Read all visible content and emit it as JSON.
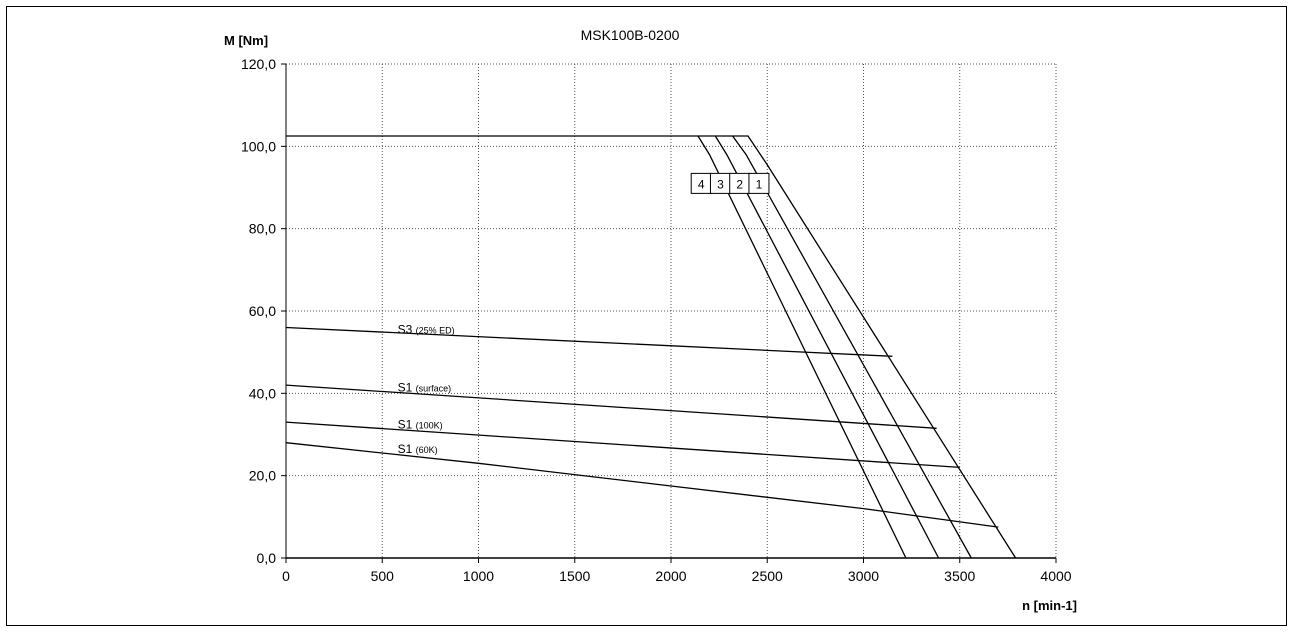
{
  "chart_data": {
    "type": "line",
    "title": "MSK100B-0200",
    "xlabel": "n [min-1]",
    "ylabel": "M [Nm]",
    "xlim": [
      0,
      4000
    ],
    "ylim": [
      0,
      120
    ],
    "xticks": [
      0,
      500,
      1000,
      1500,
      2000,
      2500,
      3000,
      3500,
      4000
    ],
    "xtick_labels": [
      "0",
      "500",
      "1000",
      "1500",
      "2000",
      "2500",
      "3000",
      "3500",
      "4000"
    ],
    "yticks": [
      0,
      20,
      40,
      60,
      80,
      100,
      120
    ],
    "ytick_labels": [
      "0,0",
      "20,0",
      "40,0",
      "60,0",
      "80,0",
      "100,0",
      "120,0"
    ],
    "grid": true,
    "series": [
      {
        "name": "S3 (25% ED)",
        "label_main": "S3",
        "label_sub": "(25% ED)",
        "label_at": [
          580,
          54.5
        ],
        "x": [
          0,
          3150
        ],
        "y": [
          56,
          49
        ]
      },
      {
        "name": "S1 (surface)",
        "label_main": "S1",
        "label_sub": "(surface)",
        "label_at": [
          580,
          40.5
        ],
        "x": [
          0,
          3380
        ],
        "y": [
          42,
          31.5
        ]
      },
      {
        "name": "S1 (100K)",
        "label_main": "S1",
        "label_sub": "(100K)",
        "label_at": [
          580,
          31.5
        ],
        "x": [
          0,
          3500
        ],
        "y": [
          33,
          22
        ]
      },
      {
        "name": "S1 (60K)",
        "label_main": "S1",
        "label_sub": "(60K)",
        "label_at": [
          580,
          25.5
        ],
        "x": [
          0,
          1000,
          2000,
          3000,
          3700
        ],
        "y": [
          28,
          23,
          17.5,
          12,
          7.5
        ]
      },
      {
        "name": "1",
        "x": [
          0,
          2400,
          2500,
          3790
        ],
        "y": [
          102.5,
          102.5,
          95.5,
          0
        ]
      },
      {
        "name": "2",
        "x": [
          2320,
          2390,
          3560
        ],
        "y": [
          102.5,
          98,
          0
        ]
      },
      {
        "name": "3",
        "x": [
          2230,
          2290,
          3390
        ],
        "y": [
          102.5,
          98,
          0
        ]
      },
      {
        "name": "4",
        "x": [
          2140,
          2200,
          3220
        ],
        "y": [
          102.5,
          98,
          0
        ]
      }
    ],
    "boxes": [
      {
        "label": "4",
        "x": 2240,
        "y": 91
      },
      {
        "label": "3",
        "x": 2340,
        "y": 91
      },
      {
        "label": "2",
        "x": 2440,
        "y": 91
      },
      {
        "label": "1",
        "x": 2540,
        "y": 91
      }
    ]
  }
}
